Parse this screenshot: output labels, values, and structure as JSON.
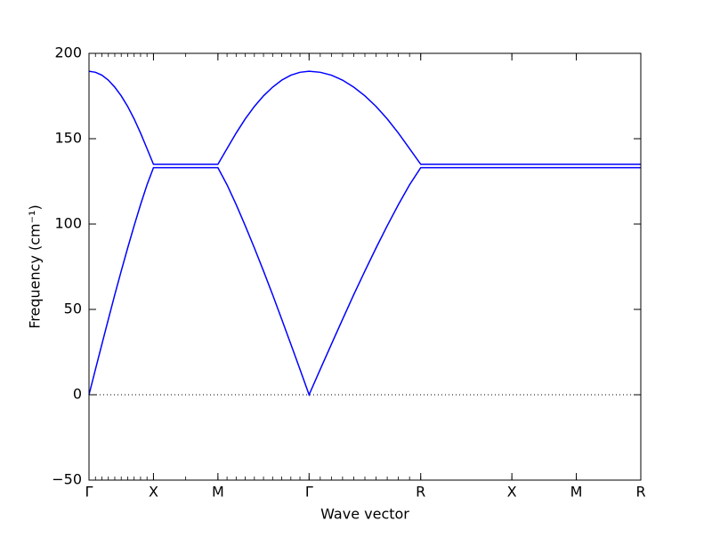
{
  "chart_data": {
    "type": "line",
    "xlabel": "Wave vector",
    "ylabel": "Frequency (cm⁻¹)",
    "x": [
      0,
      0.05,
      0.1,
      0.15,
      0.2,
      0.25,
      0.3,
      0.35,
      0.4,
      0.45,
      0.5,
      0.75,
      1.0,
      1.0707,
      1.1414,
      1.2121,
      1.2828,
      1.3536,
      1.4243,
      1.495,
      1.5657,
      1.6364,
      1.7071,
      1.7937,
      1.8803,
      1.9669,
      2.0535,
      2.1401,
      2.2267,
      2.3133,
      2.3999,
      2.4865,
      2.5731,
      3.2802,
      3.7802,
      4.2802
    ],
    "series": [
      {
        "color": "#0000ff",
        "values": [
          0,
          14.9,
          29.6,
          44.2,
          58.6,
          72.5,
          86.0,
          99.0,
          111.4,
          123.0,
          133.0,
          133.0,
          133.0,
          123.0,
          111.4,
          99.0,
          86.0,
          72.5,
          58.6,
          44.2,
          29.6,
          14.9,
          0,
          14.9,
          29.6,
          44.2,
          58.6,
          72.5,
          86.0,
          99.0,
          111.4,
          123.0,
          133.0,
          133.0,
          133.0,
          133.0
        ]
      },
      {
        "color": "#0000ff",
        "values": [
          189.5,
          188.9,
          187.2,
          184.3,
          180.2,
          175.1,
          168.9,
          161.6,
          153.3,
          144.2,
          135.0,
          135.0,
          135.0,
          144.2,
          153.3,
          161.6,
          168.9,
          175.1,
          180.2,
          184.3,
          187.2,
          188.9,
          189.5,
          188.9,
          187.2,
          184.3,
          180.2,
          175.1,
          168.9,
          161.6,
          153.3,
          144.2,
          135.0,
          135.0,
          135.0,
          135.0
        ]
      }
    ],
    "xlim": [
      0,
      4.2802
    ],
    "xticks": [
      {
        "value": 0,
        "label": "Γ"
      },
      {
        "value": 0.5,
        "label": "X"
      },
      {
        "value": 1.0,
        "label": "M"
      },
      {
        "value": 1.7071,
        "label": "Γ"
      },
      {
        "value": 2.5731,
        "label": "R"
      },
      {
        "value": 3.2802,
        "label": "X"
      },
      {
        "value": 3.7802,
        "label": "M"
      },
      {
        "value": 4.2802,
        "label": "R"
      }
    ],
    "ylim": [
      -50,
      200
    ],
    "yticks": [
      {
        "value": -50,
        "label": "−50"
      },
      0,
      50,
      100,
      150,
      200
    ],
    "zero_line": true
  }
}
